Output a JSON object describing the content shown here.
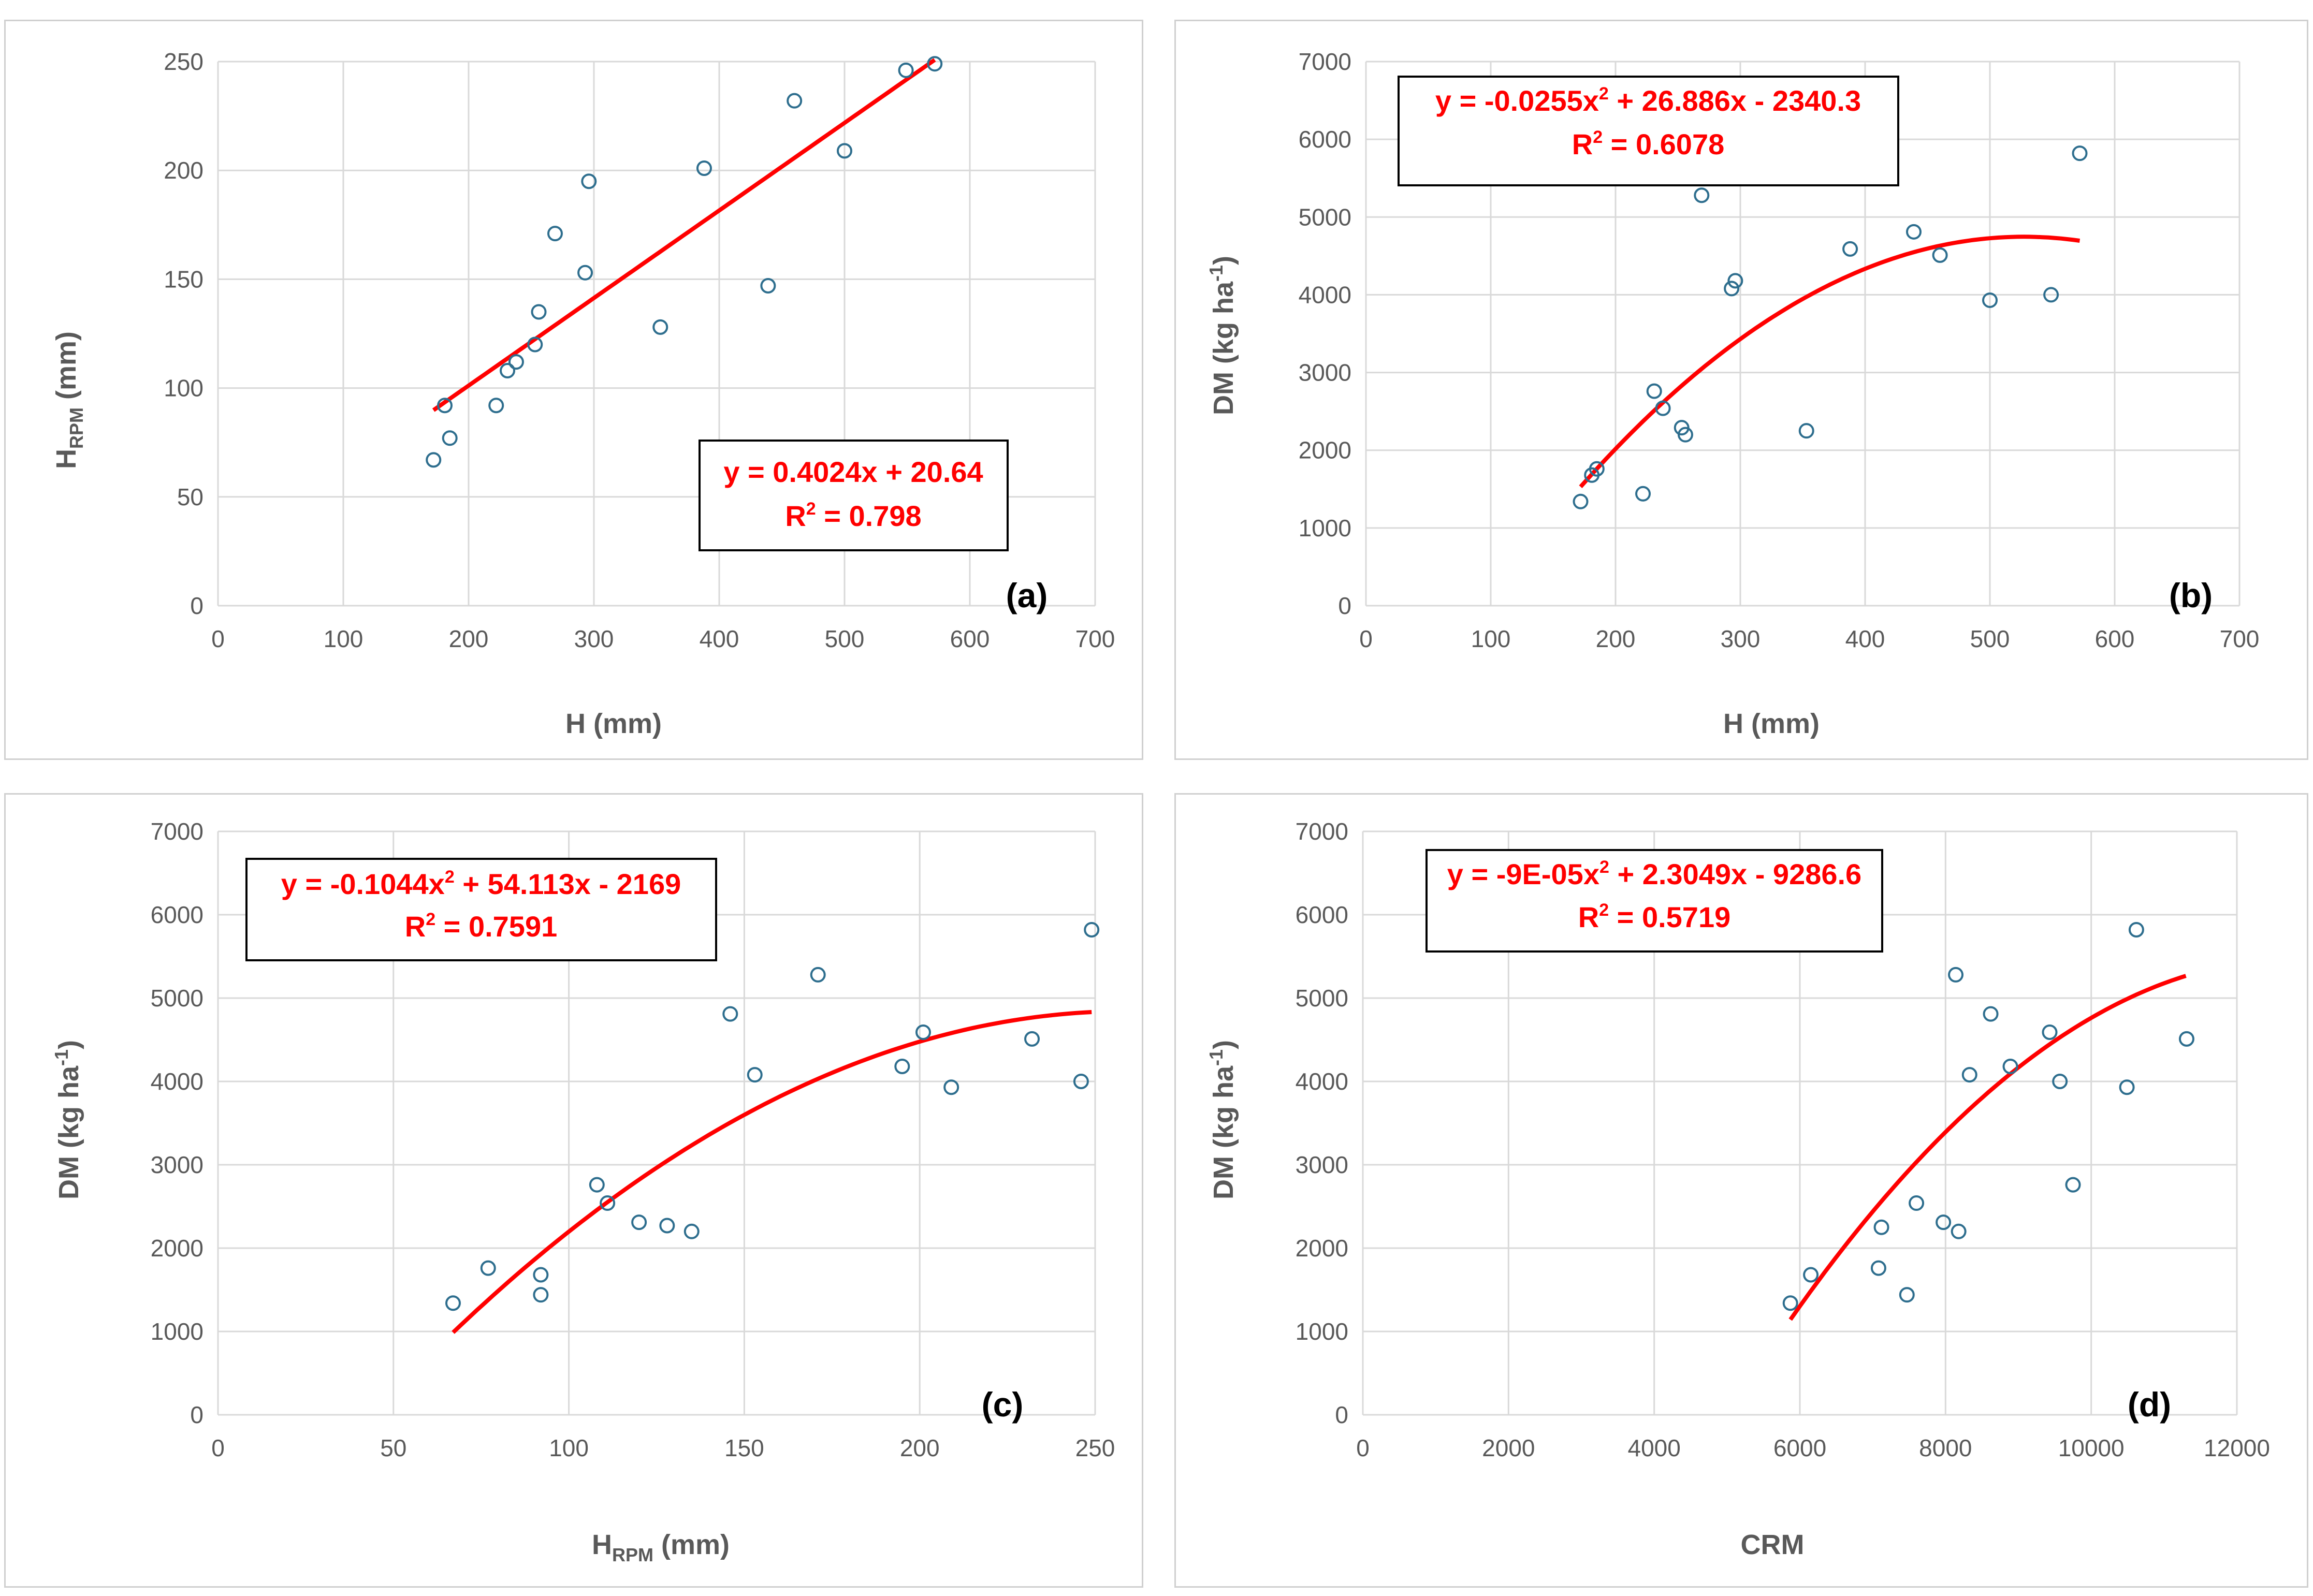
{
  "chart_data": [
    {
      "id": "a",
      "type": "scatter",
      "panel_label": "(a)",
      "xlabel": "H (mm)",
      "ylabel": "H",
      "ylabel_sub": "RPM",
      "ylabel_unit": " (mm)",
      "xlim": [
        0,
        700
      ],
      "ylim": [
        0,
        250
      ],
      "xticks": [
        0,
        100,
        200,
        300,
        400,
        500,
        600,
        700
      ],
      "yticks": [
        0,
        50,
        100,
        150,
        200,
        250
      ],
      "points": [
        [
          172,
          67
        ],
        [
          181,
          92
        ],
        [
          185,
          77
        ],
        [
          222,
          92
        ],
        [
          231,
          108
        ],
        [
          238,
          112
        ],
        [
          253,
          120
        ],
        [
          256,
          135
        ],
        [
          269,
          171
        ],
        [
          293,
          153
        ],
        [
          296,
          195
        ],
        [
          353,
          128
        ],
        [
          388,
          201
        ],
        [
          439,
          147
        ],
        [
          460,
          232
        ],
        [
          500,
          209
        ],
        [
          549,
          246
        ],
        [
          572,
          249
        ]
      ],
      "fit": {
        "kind": "linear",
        "a": 0.4024,
        "b": 20.64,
        "x_range": [
          172,
          572
        ]
      },
      "equation": "y = 0.4024x + 20.64",
      "r2_label": "R",
      "r2_value": " = 0.798"
    },
    {
      "id": "b",
      "type": "scatter",
      "panel_label": "(b)",
      "xlabel": "H (mm)",
      "ylabel": "DM (kg ha",
      "ylabel_sup": "-1",
      "ylabel_end": ")",
      "xlim": [
        0,
        700
      ],
      "ylim": [
        0,
        7000
      ],
      "xticks": [
        0,
        100,
        200,
        300,
        400,
        500,
        600,
        700
      ],
      "yticks": [
        0,
        1000,
        2000,
        3000,
        4000,
        5000,
        6000,
        7000
      ],
      "points": [
        [
          172,
          1340
        ],
        [
          181,
          1680
        ],
        [
          185,
          1760
        ],
        [
          222,
          1440
        ],
        [
          231,
          2760
        ],
        [
          238,
          2540
        ],
        [
          253,
          2290
        ],
        [
          256,
          2200
        ],
        [
          269,
          5280
        ],
        [
          293,
          4080
        ],
        [
          296,
          4180
        ],
        [
          353,
          2250
        ],
        [
          388,
          4590
        ],
        [
          439,
          4810
        ],
        [
          460,
          4510
        ],
        [
          500,
          3930
        ],
        [
          549,
          4000
        ],
        [
          572,
          5820
        ]
      ],
      "fit": {
        "kind": "quad",
        "a": -0.0255,
        "b": 26.886,
        "c": -2340.3,
        "x_range": [
          172,
          572
        ]
      },
      "equation_parts": [
        "y = -0.0255x",
        "2",
        " + 26.886x - 2340.3"
      ],
      "r2_label": "R",
      "r2_value": " = 0.6078"
    },
    {
      "id": "c",
      "type": "scatter",
      "panel_label": "(c)",
      "xlabel": "H",
      "xlabel_sub": "RPM",
      "xlabel_unit": " (mm)",
      "ylabel": "DM (kg ha",
      "ylabel_sup": "-1",
      "ylabel_end": ")",
      "xlim": [
        0,
        250
      ],
      "ylim": [
        0,
        7000
      ],
      "xticks": [
        0,
        50,
        100,
        150,
        200,
        250
      ],
      "yticks": [
        0,
        1000,
        2000,
        3000,
        4000,
        5000,
        6000,
        7000
      ],
      "points": [
        [
          67,
          1340
        ],
        [
          77,
          1760
        ],
        [
          92,
          1680
        ],
        [
          92,
          1440
        ],
        [
          108,
          2760
        ],
        [
          111,
          2540
        ],
        [
          120,
          2310
        ],
        [
          128,
          2270
        ],
        [
          135,
          2200
        ],
        [
          146,
          4810
        ],
        [
          153,
          4080
        ],
        [
          171,
          5280
        ],
        [
          195,
          4180
        ],
        [
          201,
          4590
        ],
        [
          209,
          3930
        ],
        [
          232,
          4510
        ],
        [
          246,
          4000
        ],
        [
          249,
          5820
        ]
      ],
      "fit": {
        "kind": "quad",
        "a": -0.1044,
        "b": 54.113,
        "c": -2169,
        "x_range": [
          67,
          249
        ]
      },
      "equation_parts": [
        "y = -0.1044x",
        "2",
        " + 54.113x - 2169"
      ],
      "r2_label": "R",
      "r2_value": " = 0.7591"
    },
    {
      "id": "d",
      "type": "scatter",
      "panel_label": "(d)",
      "xlabel": "CRM",
      "ylabel": "DM (kg ha",
      "ylabel_sup": "-1",
      "ylabel_end": ")",
      "xlim": [
        0,
        12000
      ],
      "ylim": [
        0,
        7000
      ],
      "xticks": [
        0,
        2000,
        4000,
        6000,
        8000,
        10000,
        12000
      ],
      "yticks": [
        0,
        1000,
        2000,
        3000,
        4000,
        5000,
        6000,
        7000
      ],
      "points": [
        [
          5870,
          1340
        ],
        [
          6150,
          1680
        ],
        [
          7080,
          1760
        ],
        [
          7120,
          2250
        ],
        [
          7470,
          1440
        ],
        [
          7600,
          2540
        ],
        [
          7970,
          2310
        ],
        [
          8140,
          5280
        ],
        [
          8180,
          2200
        ],
        [
          8330,
          4080
        ],
        [
          8620,
          4810
        ],
        [
          8890,
          4180
        ],
        [
          9430,
          4590
        ],
        [
          9570,
          4000
        ],
        [
          9750,
          2760
        ],
        [
          10490,
          3930
        ],
        [
          10620,
          5820
        ],
        [
          11310,
          4510
        ]
      ],
      "fit": {
        "kind": "quad",
        "a": -9e-05,
        "b": 2.3049,
        "c": -9286.6,
        "x_range": [
          5870,
          11300
        ]
      },
      "equation_parts": [
        "y = -9E-05x",
        "2",
        " + 2.3049x - 9286.6"
      ],
      "r2_label": "R",
      "r2_value": " = 0.5719"
    }
  ]
}
